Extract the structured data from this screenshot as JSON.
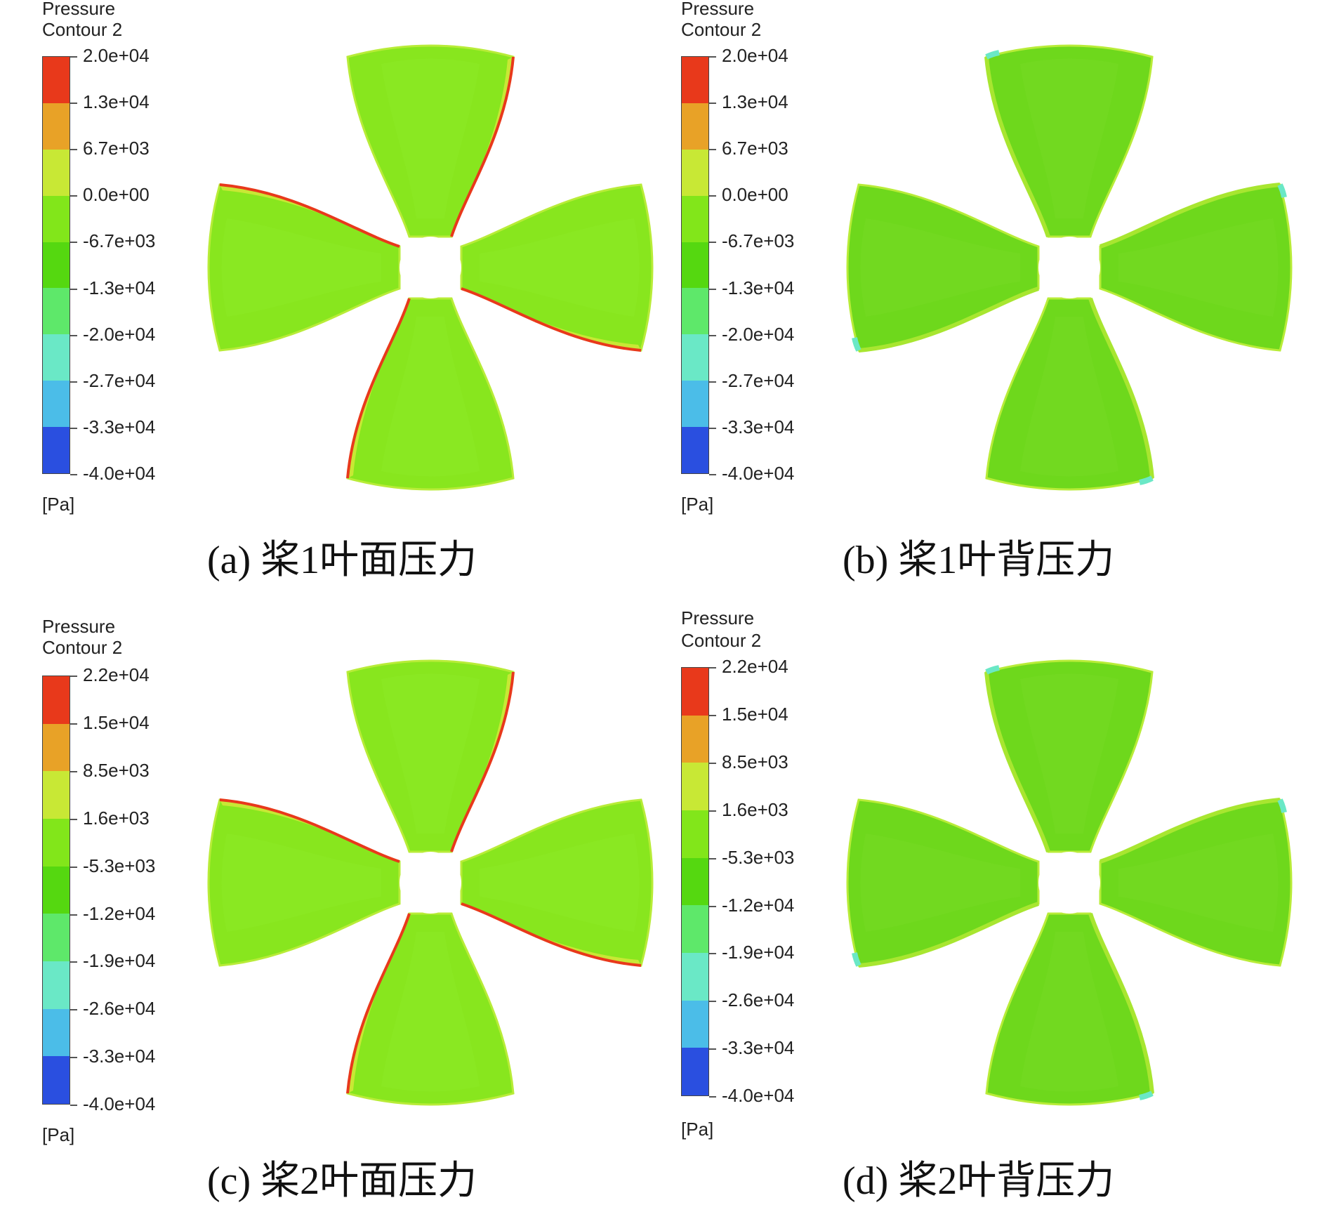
{
  "colors": {
    "bands": [
      "#e8391b",
      "#e8a227",
      "#c8e835",
      "#82e61a",
      "#55d810",
      "#5ee86a",
      "#6ae8c6",
      "#4bbde8",
      "#2a4fe0"
    ],
    "blade_face": "#88e61e",
    "blade_back": "#6ed81c"
  },
  "panels": [
    {
      "legend_title_line1": "Pressure",
      "legend_title_line2": "Contour 2",
      "tick_labels": [
        "2.0e+04",
        "1.3e+04",
        "6.7e+03",
        "0.0e+00",
        "-6.7e+03",
        "-1.3e+04",
        "-2.0e+04",
        "-2.7e+04",
        "-3.3e+04",
        "-4.0e+04"
      ],
      "unit": "[Pa]",
      "caption": "(a) 桨1叶面压力"
    },
    {
      "legend_title_line1": "Pressure",
      "legend_title_line2": "Contour 2",
      "tick_labels": [
        "2.0e+04",
        "1.3e+04",
        "6.7e+03",
        "0.0e+00",
        "-6.7e+03",
        "-1.3e+04",
        "-2.0e+04",
        "-2.7e+04",
        "-3.3e+04",
        "-4.0e+04"
      ],
      "unit": "[Pa]",
      "caption": "(b) 桨1叶背压力"
    },
    {
      "legend_title_line1": "Pressure",
      "legend_title_line2": "Contour 2",
      "tick_labels": [
        "2.2e+04",
        "1.5e+04",
        "8.5e+03",
        "1.6e+03",
        "-5.3e+03",
        "-1.2e+04",
        "-1.9e+04",
        "-2.6e+04",
        "-3.3e+04",
        "-4.0e+04"
      ],
      "unit": "[Pa]",
      "caption": "(c) 桨2叶面压力"
    },
    {
      "legend_title_line1": "Pressure",
      "legend_title_line2": "Contour 2",
      "tick_labels": [
        "2.2e+04",
        "1.5e+04",
        "8.5e+03",
        "1.6e+03",
        "-5.3e+03",
        "-1.2e+04",
        "-1.9e+04",
        "-2.6e+04",
        "-3.3e+04",
        "-4.0e+04"
      ],
      "unit": "[Pa]",
      "caption": "(d) 桨2叶背压力"
    }
  ]
}
